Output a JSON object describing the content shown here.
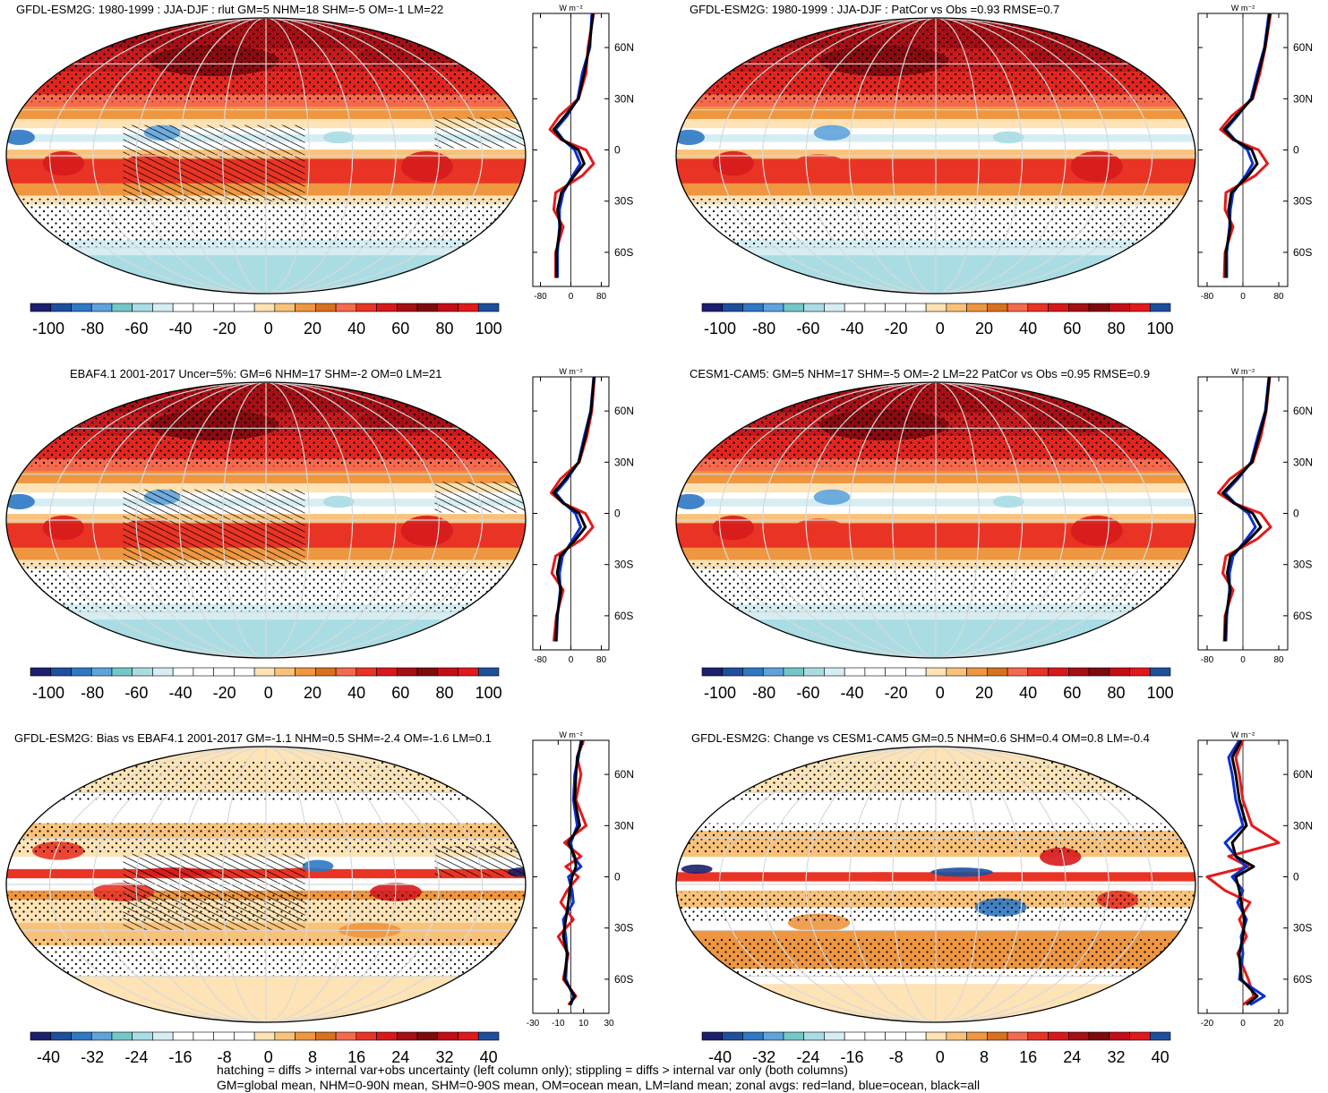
{
  "panels": [
    {
      "id": "p1",
      "title": "GFDL-ESM2G: 1980-1999 : JJA-DJF : rlut GM=5 NHM=18 SHM=-5 OM=-1 LM=22",
      "hatch": true,
      "pattern": "full",
      "units": "W m⁻²",
      "zonal_xticks": [
        "-80",
        "0",
        "80"
      ],
      "zonal_xrange": [
        -100,
        100
      ],
      "colorbar_labels": [
        "-100",
        "-80",
        "-60",
        "-40",
        "-20",
        "0",
        "20",
        "40",
        "60",
        "80",
        "100"
      ]
    },
    {
      "id": "p2",
      "title": "GFDL-ESM2G: 1980-1999 : JJA-DJF : PatCor vs Obs =0.93 RMSE=0.7",
      "hatch": false,
      "pattern": "full",
      "units": "W m⁻²",
      "zonal_xticks": [
        "-80",
        "0",
        "80"
      ],
      "zonal_xrange": [
        -100,
        100
      ],
      "colorbar_labels": [
        "-100",
        "-80",
        "-60",
        "-40",
        "-20",
        "0",
        "20",
        "40",
        "60",
        "80",
        "100"
      ]
    },
    {
      "id": "p3",
      "title": "EBAF4.1 2001-2017 Uncer=5%: GM=6 NHM=17 SHM=-2 OM=0 LM=21",
      "hatch": true,
      "pattern": "full",
      "units": "W m⁻²",
      "zonal_xticks": [
        "-80",
        "0",
        "80"
      ],
      "zonal_xrange": [
        -100,
        100
      ],
      "colorbar_labels": [
        "-100",
        "-80",
        "-60",
        "-40",
        "-20",
        "0",
        "20",
        "40",
        "60",
        "80",
        "100"
      ]
    },
    {
      "id": "p4",
      "title": "CESM1-CAM5: GM=5 NHM=17 SHM=-5 OM=-2 LM=22 PatCor vs Obs =0.95 RMSE=0.9",
      "hatch": false,
      "pattern": "full",
      "units": "W m⁻²",
      "zonal_xticks": [
        "-80",
        "0",
        "80"
      ],
      "zonal_xrange": [
        -100,
        100
      ],
      "colorbar_labels": [
        "-100",
        "-80",
        "-60",
        "-40",
        "-20",
        "0",
        "20",
        "40",
        "60",
        "80",
        "100"
      ]
    },
    {
      "id": "p5",
      "title": "GFDL-ESM2G: Bias vs EBAF4.1 2001-2017 GM=-1.1 NHM=0.5 SHM=-2.4 OM=-1.6 LM=0.1",
      "hatch": true,
      "pattern": "bias",
      "units": "W m⁻²",
      "zonal_xticks": [
        "-30",
        "-10",
        "10",
        "30"
      ],
      "zonal_xrange": [
        -30,
        30
      ],
      "colorbar_labels": [
        "-40",
        "-32",
        "-24",
        "-16",
        "-8",
        "0",
        "8",
        "16",
        "24",
        "32",
        "40"
      ]
    },
    {
      "id": "p6",
      "title": "GFDL-ESM2G: Change vs CESM1-CAM5 GM=0.5 NHM=0.6 SHM=0.4 OM=0.8 LM=-0.4",
      "hatch": false,
      "pattern": "change",
      "units": "W m⁻²",
      "zonal_xticks": [
        "-20",
        "0",
        "20"
      ],
      "zonal_xrange": [
        -25,
        25
      ],
      "colorbar_labels": [
        "-40",
        "-32",
        "-24",
        "-16",
        "-8",
        "0",
        "8",
        "16",
        "24",
        "32",
        "40"
      ]
    }
  ],
  "lat_labels": [
    "60N",
    "30N",
    "0",
    "30S",
    "60S"
  ],
  "colors": {
    "palette": [
      "#1b1f6e",
      "#1d4f9c",
      "#2f78c4",
      "#5fa3dc",
      "#74c7c8",
      "#a9dde3",
      "#d6eef3",
      "#ffffff",
      "#ffffff",
      "#ffffff",
      "#ffffff",
      "#fde3b5",
      "#f9c27a",
      "#ee9640",
      "#d9701f",
      "#f46a4e",
      "#e93425",
      "#d7191c",
      "#a50f15",
      "#7f0a0e",
      "#c40d17",
      "#e1191b",
      "#1d4f9c"
    ],
    "land": "#e31a1c",
    "ocean": "#0b2fd1",
    "all": "#000000"
  },
  "chart_data": [
    {
      "type": "map+zonal",
      "panel": "p1",
      "lat": [
        80,
        60,
        45,
        30,
        20,
        12,
        6,
        0,
        -8,
        -15,
        -25,
        -35,
        -45,
        -60,
        -75
      ],
      "series": [
        {
          "name": "land",
          "values": [
            60,
            45,
            40,
            20,
            -30,
            -55,
            -25,
            40,
            60,
            30,
            -40,
            -45,
            -20,
            -40,
            -40
          ]
        },
        {
          "name": "ocean",
          "values": [
            55,
            50,
            30,
            18,
            -10,
            -40,
            -20,
            10,
            25,
            5,
            -20,
            -30,
            -30,
            -35,
            -35
          ]
        },
        {
          "name": "all",
          "values": [
            58,
            48,
            35,
            20,
            -15,
            -45,
            -22,
            20,
            35,
            10,
            -25,
            -35,
            -28,
            -38,
            -38
          ]
        }
      ]
    },
    {
      "type": "map+zonal",
      "panel": "p2",
      "lat": [
        80,
        60,
        45,
        30,
        20,
        12,
        6,
        0,
        -8,
        -15,
        -25,
        -35,
        -45,
        -60,
        -75
      ],
      "series": [
        {
          "name": "land",
          "values": [
            62,
            50,
            38,
            22,
            -25,
            -50,
            -22,
            35,
            55,
            28,
            -38,
            -40,
            -22,
            -40,
            -42
          ]
        },
        {
          "name": "ocean",
          "values": [
            58,
            48,
            32,
            18,
            -12,
            -38,
            -18,
            10,
            22,
            6,
            -22,
            -28,
            -30,
            -36,
            -36
          ]
        },
        {
          "name": "all",
          "values": [
            60,
            49,
            35,
            20,
            -15,
            -42,
            -20,
            20,
            32,
            12,
            -26,
            -32,
            -28,
            -38,
            -38
          ]
        }
      ]
    },
    {
      "type": "map+zonal",
      "panel": "p3",
      "lat": [
        80,
        60,
        45,
        30,
        20,
        12,
        6,
        0,
        -8,
        -15,
        -25,
        -35,
        -45,
        -60,
        -75
      ],
      "series": [
        {
          "name": "land",
          "values": [
            62,
            55,
            42,
            22,
            -28,
            -52,
            -20,
            38,
            58,
            30,
            -40,
            -50,
            -20,
            -38,
            -45
          ]
        },
        {
          "name": "ocean",
          "values": [
            60,
            52,
            35,
            20,
            -10,
            -40,
            -18,
            12,
            26,
            6,
            -22,
            -30,
            -28,
            -35,
            -38
          ]
        },
        {
          "name": "all",
          "values": [
            61,
            53,
            38,
            21,
            -15,
            -45,
            -20,
            22,
            38,
            14,
            -28,
            -36,
            -26,
            -36,
            -40
          ]
        }
      ]
    },
    {
      "type": "map+zonal",
      "panel": "p4",
      "lat": [
        80,
        60,
        45,
        30,
        20,
        12,
        6,
        0,
        -8,
        -15,
        -25,
        -35,
        -45,
        -60,
        -75
      ],
      "series": [
        {
          "name": "land",
          "values": [
            60,
            52,
            40,
            22,
            -30,
            -55,
            -20,
            40,
            62,
            32,
            -38,
            -45,
            -22,
            -40,
            -42
          ]
        },
        {
          "name": "ocean",
          "values": [
            58,
            50,
            33,
            18,
            -12,
            -40,
            -18,
            12,
            28,
            8,
            -22,
            -30,
            -30,
            -36,
            -38
          ]
        },
        {
          "name": "all",
          "values": [
            59,
            51,
            36,
            20,
            -16,
            -45,
            -20,
            22,
            40,
            15,
            -28,
            -35,
            -28,
            -38,
            -40
          ]
        }
      ]
    },
    {
      "type": "map+zonal",
      "panel": "p5",
      "lat": [
        80,
        70,
        60,
        45,
        30,
        20,
        12,
        6,
        0,
        -8,
        -15,
        -25,
        -35,
        -45,
        -60,
        -70,
        -75
      ],
      "series": [
        {
          "name": "land",
          "values": [
            10,
            5,
            8,
            4,
            12,
            -5,
            8,
            -4,
            6,
            -3,
            -8,
            2,
            -10,
            -2,
            -6,
            4,
            -2
          ]
        },
        {
          "name": "ocean",
          "values": [
            8,
            6,
            3,
            2,
            5,
            0,
            2,
            8,
            -2,
            1,
            2,
            -6,
            -4,
            -3,
            -4,
            2,
            0
          ]
        },
        {
          "name": "all",
          "values": [
            9,
            5,
            4,
            3,
            7,
            -2,
            3,
            4,
            1,
            -1,
            -2,
            -4,
            -6,
            -3,
            -5,
            3,
            -1
          ]
        }
      ]
    },
    {
      "type": "map+zonal",
      "panel": "p6",
      "lat": [
        80,
        70,
        60,
        45,
        30,
        20,
        12,
        6,
        0,
        -8,
        -15,
        -25,
        -35,
        -45,
        -60,
        -70,
        -75
      ],
      "series": [
        {
          "name": "land",
          "values": [
            0,
            -4,
            -2,
            0,
            5,
            20,
            -8,
            3,
            -20,
            -10,
            4,
            -2,
            2,
            -3,
            3,
            6,
            0
          ]
        },
        {
          "name": "ocean",
          "values": [
            -2,
            -8,
            -6,
            -4,
            0,
            -10,
            -4,
            2,
            -6,
            0,
            -3,
            2,
            -1,
            0,
            -2,
            12,
            4
          ]
        },
        {
          "name": "all",
          "values": [
            -1,
            -6,
            -4,
            -2,
            2,
            -6,
            -4,
            6,
            -4,
            -2,
            -1,
            1,
            0,
            -2,
            -1,
            8,
            2
          ]
        }
      ]
    }
  ],
  "footer": {
    "line1": "hatching = diffs > internal var+obs uncertainty (left column only); stippling = diffs > internal var only (both columns)",
    "line2": "GM=global mean, NHM=0-90N mean, SHM=0-90S mean, OM=ocean mean, LM=land mean; zonal avgs: red=land, blue=ocean, black=all"
  }
}
